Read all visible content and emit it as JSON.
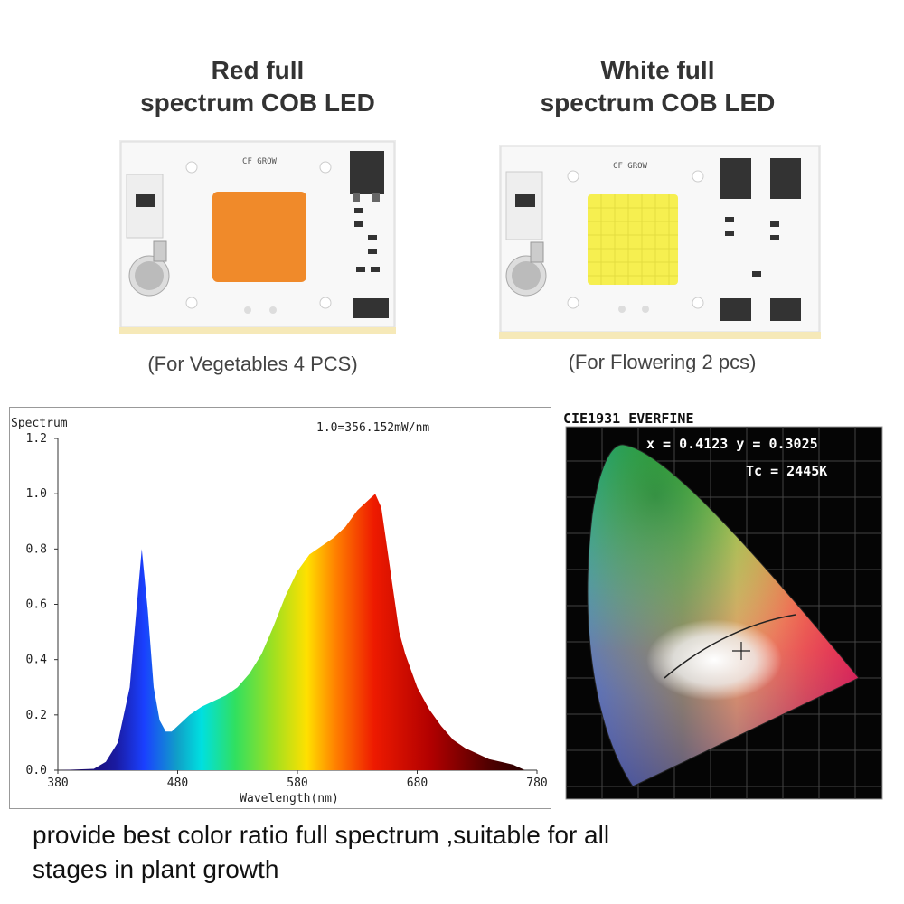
{
  "products": {
    "red": {
      "title_line1": "Red full",
      "title_line2": "spectrum COB LED",
      "board_label": "CF GROW",
      "caption": "(For Vegetables 4 PCS)",
      "led_color": "#f08a2a"
    },
    "white": {
      "title_line1": "White full",
      "title_line2": "spectrum COB LED",
      "board_label": "CF GROW",
      "caption": "(For Flowering 2 pcs)",
      "led_color": "#f6ef50"
    }
  },
  "cie": {
    "title": "CIE1931 EVERFINE",
    "xy_readout": "x = 0.4123 y = 0.3025",
    "tc_readout": "Tc = 2445K"
  },
  "footer": {
    "line1": "provide best color ratio full spectrum ,suitable for all",
    "line2": "stages in plant growth"
  },
  "chart_data": {
    "type": "area",
    "title": "Spectrum",
    "subtitle": "1.0=356.152mW/nm",
    "xlabel": "Wavelength(nm)",
    "ylabel": "",
    "xlim": [
      380,
      780
    ],
    "ylim": [
      0,
      1.2
    ],
    "xticks": [
      380,
      480,
      580,
      680,
      780
    ],
    "yticks": [
      "0.0",
      "0.2",
      "0.4",
      "0.6",
      "0.8",
      "1.0",
      "1.2"
    ],
    "x": [
      380,
      410,
      420,
      430,
      440,
      445,
      450,
      455,
      460,
      465,
      470,
      475,
      480,
      490,
      500,
      510,
      520,
      530,
      540,
      550,
      560,
      570,
      580,
      590,
      600,
      610,
      620,
      630,
      640,
      645,
      650,
      655,
      660,
      665,
      670,
      680,
      690,
      700,
      710,
      720,
      730,
      740,
      750,
      760,
      770
    ],
    "values": [
      0,
      0.005,
      0.03,
      0.1,
      0.3,
      0.55,
      0.8,
      0.58,
      0.3,
      0.18,
      0.14,
      0.14,
      0.16,
      0.2,
      0.23,
      0.25,
      0.27,
      0.3,
      0.35,
      0.42,
      0.52,
      0.63,
      0.72,
      0.78,
      0.81,
      0.84,
      0.88,
      0.94,
      0.98,
      1.0,
      0.95,
      0.8,
      0.65,
      0.5,
      0.42,
      0.3,
      0.22,
      0.16,
      0.11,
      0.08,
      0.06,
      0.04,
      0.03,
      0.02,
      0.0
    ]
  }
}
